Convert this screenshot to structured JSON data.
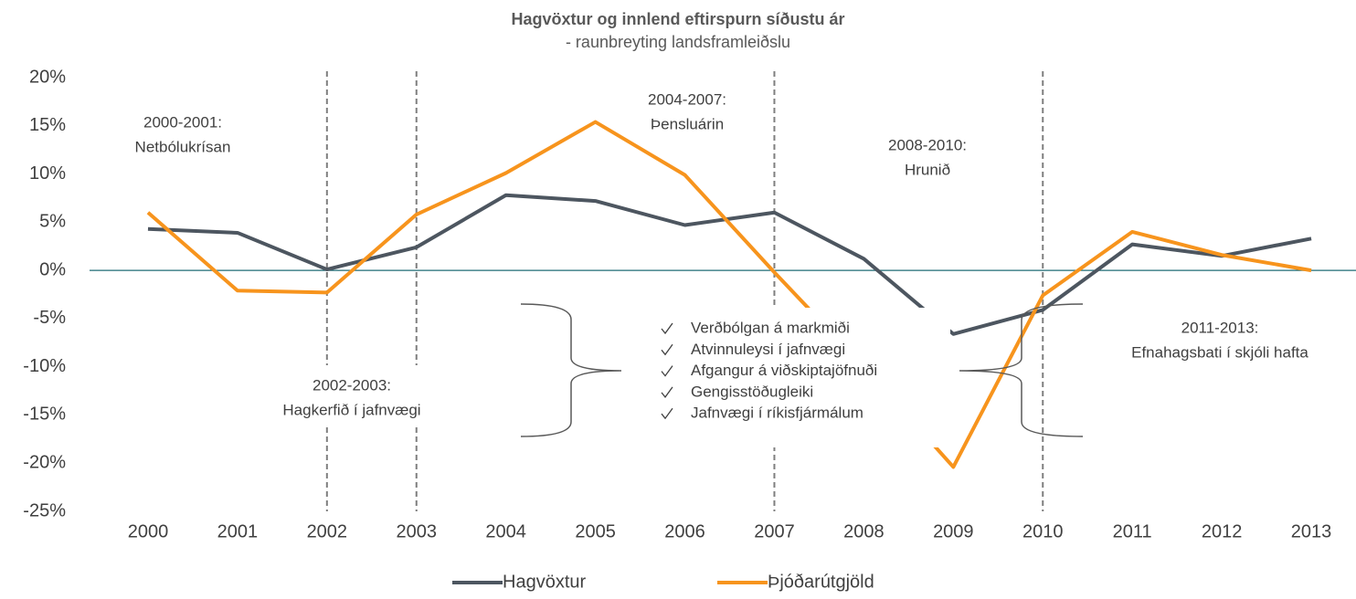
{
  "chart_data": {
    "type": "line",
    "title": "Hagvöxtur og innlend eftirspurn síðustu ár",
    "subtitle": "- raunbreyting landsframleiðslu",
    "categories": [
      "2000",
      "2001",
      "2002",
      "2003",
      "2004",
      "2005",
      "2006",
      "2007",
      "2008",
      "2009",
      "2010",
      "2011",
      "2012",
      "2013"
    ],
    "series": [
      {
        "name": "Hagvöxtur",
        "color": "#4d5660",
        "values": [
          4.3,
          3.9,
          0.1,
          2.4,
          7.8,
          7.2,
          4.7,
          6.0,
          1.2,
          -6.6,
          -4.1,
          2.7,
          1.5,
          3.3
        ]
      },
      {
        "name": "Þjóðarútgjöld",
        "color": "#f7941d",
        "values": [
          6.0,
          -2.1,
          -2.3,
          5.8,
          10.1,
          15.4,
          9.9,
          -0.2,
          -10.0,
          -20.4,
          -2.6,
          4.0,
          1.6,
          0.0
        ]
      }
    ],
    "ylim": [
      -25,
      20
    ],
    "yticks": [
      {
        "value": 20,
        "label": "20%"
      },
      {
        "value": 15,
        "label": "15%"
      },
      {
        "value": 10,
        "label": "10%"
      },
      {
        "value": 5,
        "label": "5%"
      },
      {
        "value": 0,
        "label": "0%"
      },
      {
        "value": -5,
        "label": "-5%"
      },
      {
        "value": -10,
        "label": "-10%"
      },
      {
        "value": -15,
        "label": "-15%"
      },
      {
        "value": -20,
        "label": "-20%"
      },
      {
        "value": -25,
        "label": "-25%"
      }
    ],
    "annotations": [
      {
        "lines": [
          "2000-2001:",
          "Netbólukrísan"
        ]
      },
      {
        "lines": [
          "2002-2003:",
          "Hagkerfið í jafnvægi"
        ]
      },
      {
        "lines": [
          "2004-2007:",
          "Þensluárin"
        ]
      },
      {
        "lines": [
          "2008-2010:",
          "Hrunið"
        ]
      },
      {
        "lines": [
          "2011-2013:",
          "Efnahagsbati í skjóli hafta"
        ]
      }
    ],
    "checklist": [
      "Verðbólgan á markmiði",
      "Atvinnuleysi í jafnvægi",
      "Afgangur á viðskiptajöfnuði",
      "Gengisstöðugleiki",
      "Jafnvægi í ríkisfjármálum"
    ],
    "legend": "bottom"
  }
}
